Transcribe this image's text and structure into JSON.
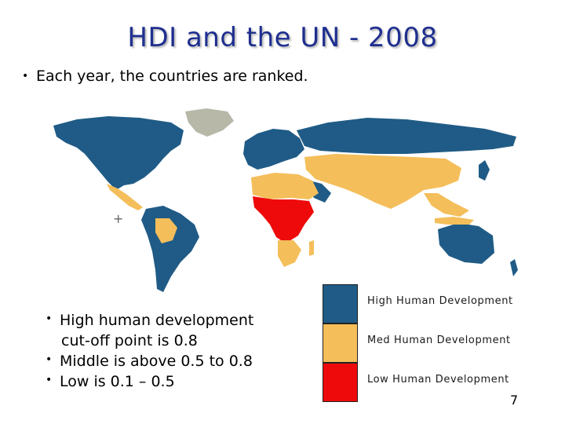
{
  "slide": {
    "title": "HDI and the UN - 2008",
    "intro": "Each year, the countries are ranked.",
    "bullets": [
      "High human development",
      "cut-off point is 0.8",
      "Middle is above 0.5 to 0.8",
      "Low is 0.1 – 0.5"
    ],
    "page_number": "7"
  },
  "legend": [
    {
      "label": "High Human Development",
      "color": "#1f5b86"
    },
    {
      "label": "Med Human Development",
      "color": "#f4be5a"
    },
    {
      "label": "Low Human Development",
      "color": "#ee0a0a"
    }
  ],
  "map_colors": {
    "high": "#1f5b86",
    "medium": "#f4be5a",
    "low": "#ee0a0a",
    "no_data": "#b7b8a8"
  }
}
